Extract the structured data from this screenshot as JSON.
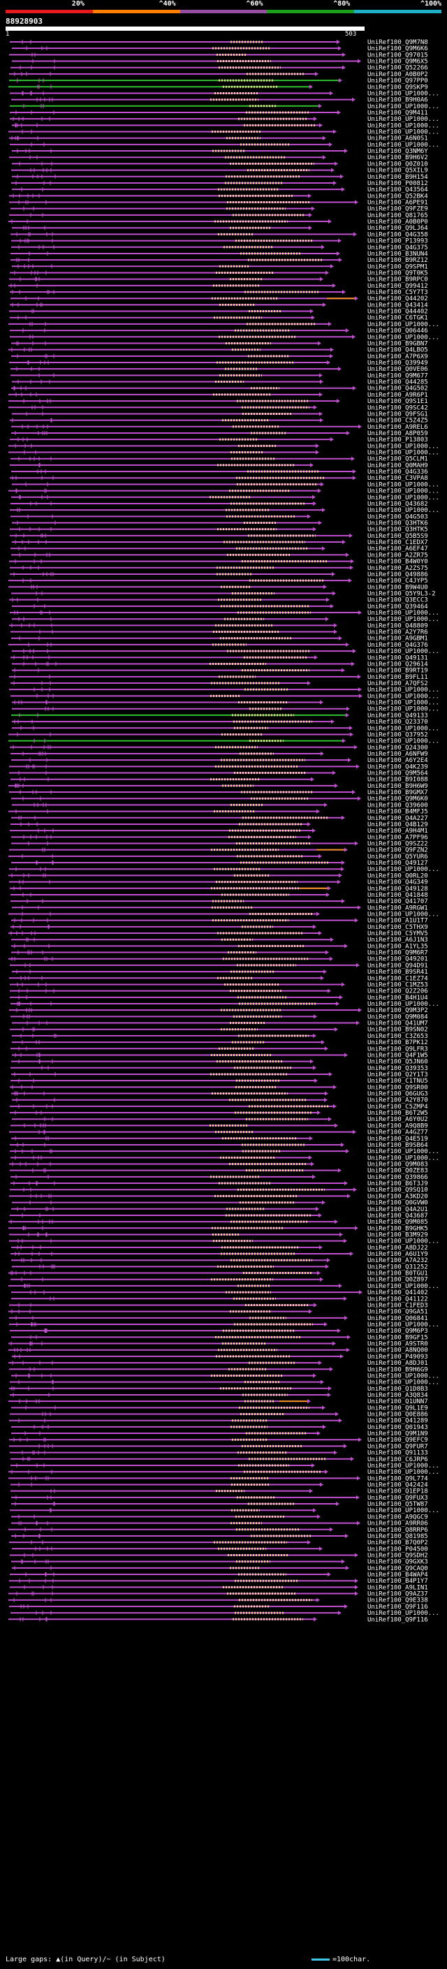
{
  "legend": [
    {
      "label": "20%",
      "color": "#e41a1c"
    },
    {
      "label": "^40%",
      "color": "#ff7f00"
    },
    {
      "label": "^60%",
      "color": "#984ea3"
    },
    {
      "label": "^80%",
      "color": "#1ca01c"
    },
    {
      "label": "^100%",
      "color": "#1fb0c8"
    }
  ],
  "query": {
    "id": "88928903",
    "start": "1",
    "end": "503"
  },
  "colors": {
    "line": "#c050d0",
    "green": "#30c030",
    "orange": "#f09020",
    "bead": "#f0d090"
  },
  "hits": [
    "UniRef100_Q9M7N8",
    "UniRef100_Q9M6K6",
    "UniRef100_Q97015",
    "UniRef100_Q9M6X5",
    "UniRef100_Q52266",
    "UniRef100_A0B0P2",
    "UniRef100_Q97PP0",
    "UniRef100_Q9SKP9",
    "UniRef100_UP1000...",
    "UniRef100_B9H0A6",
    "UniRef100_UP1000...",
    "UniRef100_Q9M411",
    "UniRef100_UP1000...",
    "UniRef100_UP1000...",
    "UniRef100_UP1000...",
    "UniRef100_A6N0S1",
    "UniRef100_UP1000...",
    "UniRef100_Q3NM6Y",
    "UniRef100_B9H6V2",
    "UniRef100_Q0Z010",
    "UniRef100_Q5XIL9",
    "UniRef100_B9H154",
    "UniRef100_P00812",
    "UniRef100_Q43564",
    "UniRef100_Q52BK4",
    "UniRef100_A6PE91",
    "UniRef100_Q9FZE9",
    "UniRef100_Q81765",
    "UniRef100_A0B0P0",
    "UniRef100_Q9LJ64",
    "UniRef100_Q4G358",
    "UniRef100_P13993",
    "UniRef100_Q4G375",
    "UniRef100_B3NUN4",
    "UniRef100_B9RZ12",
    "UniRef100_Q9SPM1",
    "UniRef100_Q9T0K5",
    "UniRef100_B9RPC0",
    "UniRef100_Q99412",
    "UniRef100_C5Y7T3",
    "UniRef100_Q44202",
    "UniRef100_Q43414",
    "UniRef100_Q44402",
    "UniRef100_C6TGK1",
    "UniRef100_UP1000...",
    "UniRef100_Q06446",
    "UniRef100_UP1000...",
    "UniRef100_B9GBN7",
    "UniRef100_Q4LBO5",
    "UniRef100_A7P6X9",
    "UniRef100_Q39949",
    "UniRef100_Q0VE06",
    "UniRef100_Q9M677",
    "UniRef100_Q44285",
    "UniRef100_Q4G502",
    "UniRef100_A9R6P1",
    "UniRef100_Q9S1E1",
    "UniRef100_Q9SC42",
    "UniRef100_Q9FSG1",
    "UniRef100_C5Z4Z5",
    "UniRef100_A9REL6",
    "UniRef100_A8P059",
    "UniRef100_P13803",
    "UniRef100_UP1000...",
    "UniRef100_UP1000...",
    "UniRef100_Q5CLM1",
    "UniRef100_Q0MAH9",
    "UniRef100_Q4G336",
    "UniRef100_C3VPA8",
    "UniRef100_UP1000...",
    "UniRef100_UP1000...",
    "UniRef100_UP1000...",
    "UniRef100_Q43682",
    "UniRef100_UP1000...",
    "UniRef100_Q4G503",
    "UniRef100_Q3HTK6",
    "UniRef100_Q3HTK5",
    "UniRef100_Q5B5S9",
    "UniRef100_C1EDX7",
    "UniRef100_A6EF47",
    "UniRef100_A2ZR75",
    "UniRef100_B4W0Y0",
    "UniRef100_A2ZS75",
    "UniRef100_Q49886",
    "UniRef100_C4JYP5",
    "UniRef100_B9W4U0",
    "UniRef100_Q5Y9L3-2",
    "UniRef100_Q3ECC3",
    "UniRef100_Q39464",
    "UniRef100_UP1000...",
    "UniRef100_UP1000...",
    "UniRef100_Q48809",
    "UniRef100_A2Y7R6",
    "UniRef100_A9GBM1",
    "UniRef100_Q4G376",
    "UniRef100_UP1000...",
    "UniRef100_Q49131",
    "UniRef100_Q29614",
    "UniRef100_B9RT19",
    "UniRef100_B9FL11",
    "UniRef100_A7QFS2",
    "UniRef100_UP1000...",
    "UniRef100_UP1000...",
    "UniRef100_UP1000...",
    "UniRef100_UP1000...",
    "UniRef100_Q49133",
    "UniRef100_Q23370",
    "UniRef100_UP1000...",
    "UniRef100_Q37952",
    "UniRef100_UP1000...",
    "UniRef100_Q24300",
    "UniRef100_A6NFW9",
    "UniRef100_A6Y2E4",
    "UniRef100_Q4K239",
    "UniRef100_Q9M564",
    "UniRef100_B9I088",
    "UniRef100_B9H6W9",
    "UniRef100_B9GMX7",
    "UniRef100_Q9M6K0",
    "UniRef100_Q39600",
    "UniRef100_B4MFJ5",
    "UniRef100_Q4A227",
    "UniRef100_Q4B129",
    "UniRef100_A9H4M1",
    "UniRef100_A7PF96",
    "UniRef100_Q9SZ22",
    "UniRef100_Q9FZN2",
    "UniRef100_Q5YUR6",
    "UniRef100_Q49127",
    "UniRef100_UP1000...",
    "UniRef100_Q0RL20",
    "UniRef100_Q4G349",
    "UniRef100_Q49128",
    "UniRef100_Q41848",
    "UniRef100_Q41707",
    "UniRef100_A9RGW1",
    "UniRef100_UP1000...",
    "UniRef100_A1U1T7",
    "UniRef100_C5THX9",
    "UniRef100_C5YMV5",
    "UniRef100_A6J1N3",
    "UniRef100_A1YL35",
    "UniRef100_Q9M6R7",
    "UniRef100_Q49201",
    "UniRef100_Q94D91",
    "UniRef100_B9SR41",
    "UniRef100_C1EZ74",
    "UniRef100_C1MZ53",
    "UniRef100_Q2Z206",
    "UniRef100_B4H1U4",
    "UniRef100_UP1000...",
    "UniRef100_Q9M3P2",
    "UniRef100_Q9M084",
    "UniRef100_Q41UM7",
    "UniRef100_B9SN02",
    "UniRef100_C3Z653",
    "UniRef100_B7PK12",
    "UniRef100_Q9LFR3",
    "UniRef100_Q4F1W5",
    "UniRef100_Q5JN60",
    "UniRef100_Q39353",
    "UniRef100_Q2Y1T3",
    "UniRef100_C1TNU5",
    "UniRef100_Q9SR00",
    "UniRef100_Q6GUG3",
    "UniRef100_A2Y870",
    "UniRef100_C5ZMP4",
    "UniRef100_B6T2W5",
    "UniRef100_A6Y0U2",
    "UniRef100_A9Q8B9",
    "UniRef100_A4GZ77",
    "UniRef100_Q4E519",
    "UniRef100_B9SB64",
    "UniRef100_UP1000...",
    "UniRef100_UP1000...",
    "UniRef100_Q9M083",
    "UniRef100_Q0ZE83",
    "UniRef100_Q39866",
    "UniRef100_B6T3J9",
    "UniRef100_Q9SQ10",
    "UniRef100_A3KD20",
    "UniRef100_Q0GVW0",
    "UniRef100_Q4A2U1",
    "UniRef100_Q43687",
    "UniRef100_Q9M085",
    "UniRef100_B9GHK5",
    "UniRef100_B3M929",
    "UniRef100_UP1000...",
    "UniRef100_A8DJ22",
    "UniRef100_A6U1Y9",
    "UniRef100_A7A232",
    "UniRef100_Q31252",
    "UniRef100_B0TGU1",
    "UniRef100_Q0Z897",
    "UniRef100_UP1000...",
    "UniRef100_Q41402",
    "UniRef100_Q41122",
    "UniRef100_C1FED3",
    "UniRef100_Q9GA51",
    "UniRef100_Q06841",
    "UniRef100_UP1000...",
    "UniRef100_Q9M6P3",
    "UniRef100_B9GF15",
    "UniRef100_A9STR0",
    "UniRef100_A8NQ00",
    "UniRef100_P49093",
    "UniRef100_A8DJ01",
    "UniRef100_B9H6G9",
    "UniRef100_UP1000...",
    "UniRef100_UP1000...",
    "UniRef100_Q1D8B3",
    "UniRef100_A3Q834",
    "UniRef100_Q1UNN7",
    "UniRef100_Q9L1E9",
    "UniRef100_Q0E886",
    "UniRef100_Q41289",
    "UniRef100_Q01943",
    "UniRef100_Q9M1N9",
    "UniRef100_Q9EFC9",
    "UniRef100_Q9FUR7",
    "UniRef100_Q91133",
    "UniRef100_C6JRP6",
    "UniRef100_UP1000...",
    "UniRef100_UP1000...",
    "UniRef100_Q9L774",
    "UniRef100_Q42424",
    "UniRef100_Q1EP18",
    "UniRef100_Q9FUX3",
    "UniRef100_Q5TW87",
    "UniRef100_UP1000...",
    "UniRef100_A9QGC9",
    "UniRef100_A9RR06",
    "UniRef100_Q8RRP6",
    "UniRef100_Q81985",
    "UniRef100_B7Q0P2",
    "UniRef100_P04500",
    "UniRef100_Q9SDH2",
    "UniRef100_Q9GXK3",
    "UniRef100_Q9CAQ0",
    "UniRef100_B4WAP4",
    "UniRef100_B4P1Y7",
    "UniRef100_A9LIN1",
    "UniRef100_Q9AZ37",
    "UniRef100_Q9E338",
    "UniRef100_Q9F116",
    "UniRef100_UP1000...",
    "UniRef100_Q9F116"
  ],
  "footer": {
    "left": "Large gaps: ▲(in Query)/~ (in Subject)",
    "right": "=100char."
  }
}
